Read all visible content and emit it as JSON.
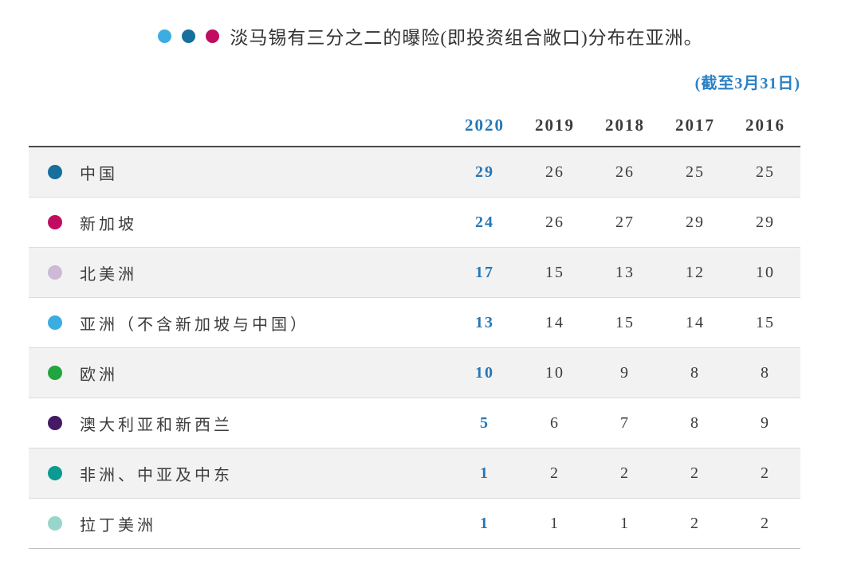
{
  "title": {
    "text": "淡马锡有三分之二的曝险(即投资组合敞口)分布在亚洲。",
    "dots": [
      {
        "name": "light-blue-dot",
        "color": "#3badE3"
      },
      {
        "name": "dark-blue-dot",
        "color": "#166f9c"
      },
      {
        "name": "magenta-dot",
        "color": "#c00d61"
      }
    ]
  },
  "note": "(截至3月31日)",
  "colors": {
    "accent_blue": "#2577b5",
    "note_blue": "#2980c4",
    "stripe_gray": "#f2f2f2",
    "header_rule": "#4a4a4a"
  },
  "table": {
    "year_headers": [
      "2020",
      "2019",
      "2018",
      "2017",
      "2016"
    ],
    "highlight_year": "2020",
    "rows": [
      {
        "label": "中国",
        "dot_color": "#166f9c",
        "values": [
          "29",
          "26",
          "26",
          "25",
          "25"
        ]
      },
      {
        "label": "新加坡",
        "dot_color": "#c00d61",
        "values": [
          "24",
          "26",
          "27",
          "29",
          "29"
        ]
      },
      {
        "label": "北美洲",
        "dot_color": "#cdbad7",
        "values": [
          "17",
          "15",
          "13",
          "12",
          "10"
        ]
      },
      {
        "label": "亚洲（不含新加坡与中国）",
        "dot_color": "#3bade3",
        "values": [
          "13",
          "14",
          "15",
          "14",
          "15"
        ]
      },
      {
        "label": "欧洲",
        "dot_color": "#21a53e",
        "values": [
          "10",
          "10",
          "9",
          "8",
          "8"
        ]
      },
      {
        "label": "澳大利亚和新西兰",
        "dot_color": "#441a64",
        "values": [
          "5",
          "6",
          "7",
          "8",
          "9"
        ]
      },
      {
        "label": "非洲、中亚及中东",
        "dot_color": "#0d9a90",
        "values": [
          "1",
          "2",
          "2",
          "2",
          "2"
        ]
      },
      {
        "label": "拉丁美洲",
        "dot_color": "#98d6cb",
        "values": [
          "1",
          "1",
          "1",
          "2",
          "2"
        ]
      }
    ]
  },
  "chart_data": {
    "type": "table",
    "title": "淡马锡有三分之二的曝险(即投资组合敞口)分布在亚洲。",
    "note": "(截至3月31日)",
    "categories": [
      "2020",
      "2019",
      "2018",
      "2017",
      "2016"
    ],
    "series": [
      {
        "name": "中国",
        "values": [
          29,
          26,
          26,
          25,
          25
        ]
      },
      {
        "name": "新加坡",
        "values": [
          24,
          26,
          27,
          29,
          29
        ]
      },
      {
        "name": "北美洲",
        "values": [
          17,
          15,
          13,
          12,
          10
        ]
      },
      {
        "name": "亚洲（不含新加坡与中国）",
        "values": [
          13,
          14,
          15,
          14,
          15
        ]
      },
      {
        "name": "欧洲",
        "values": [
          10,
          10,
          9,
          8,
          8
        ]
      },
      {
        "name": "澳大利亚和新西兰",
        "values": [
          5,
          6,
          7,
          8,
          9
        ]
      },
      {
        "name": "非洲、中亚及中东",
        "values": [
          1,
          2,
          2,
          2,
          2
        ]
      },
      {
        "name": "拉丁美洲",
        "values": [
          1,
          1,
          1,
          2,
          2
        ]
      }
    ],
    "highlight_column": "2020"
  }
}
